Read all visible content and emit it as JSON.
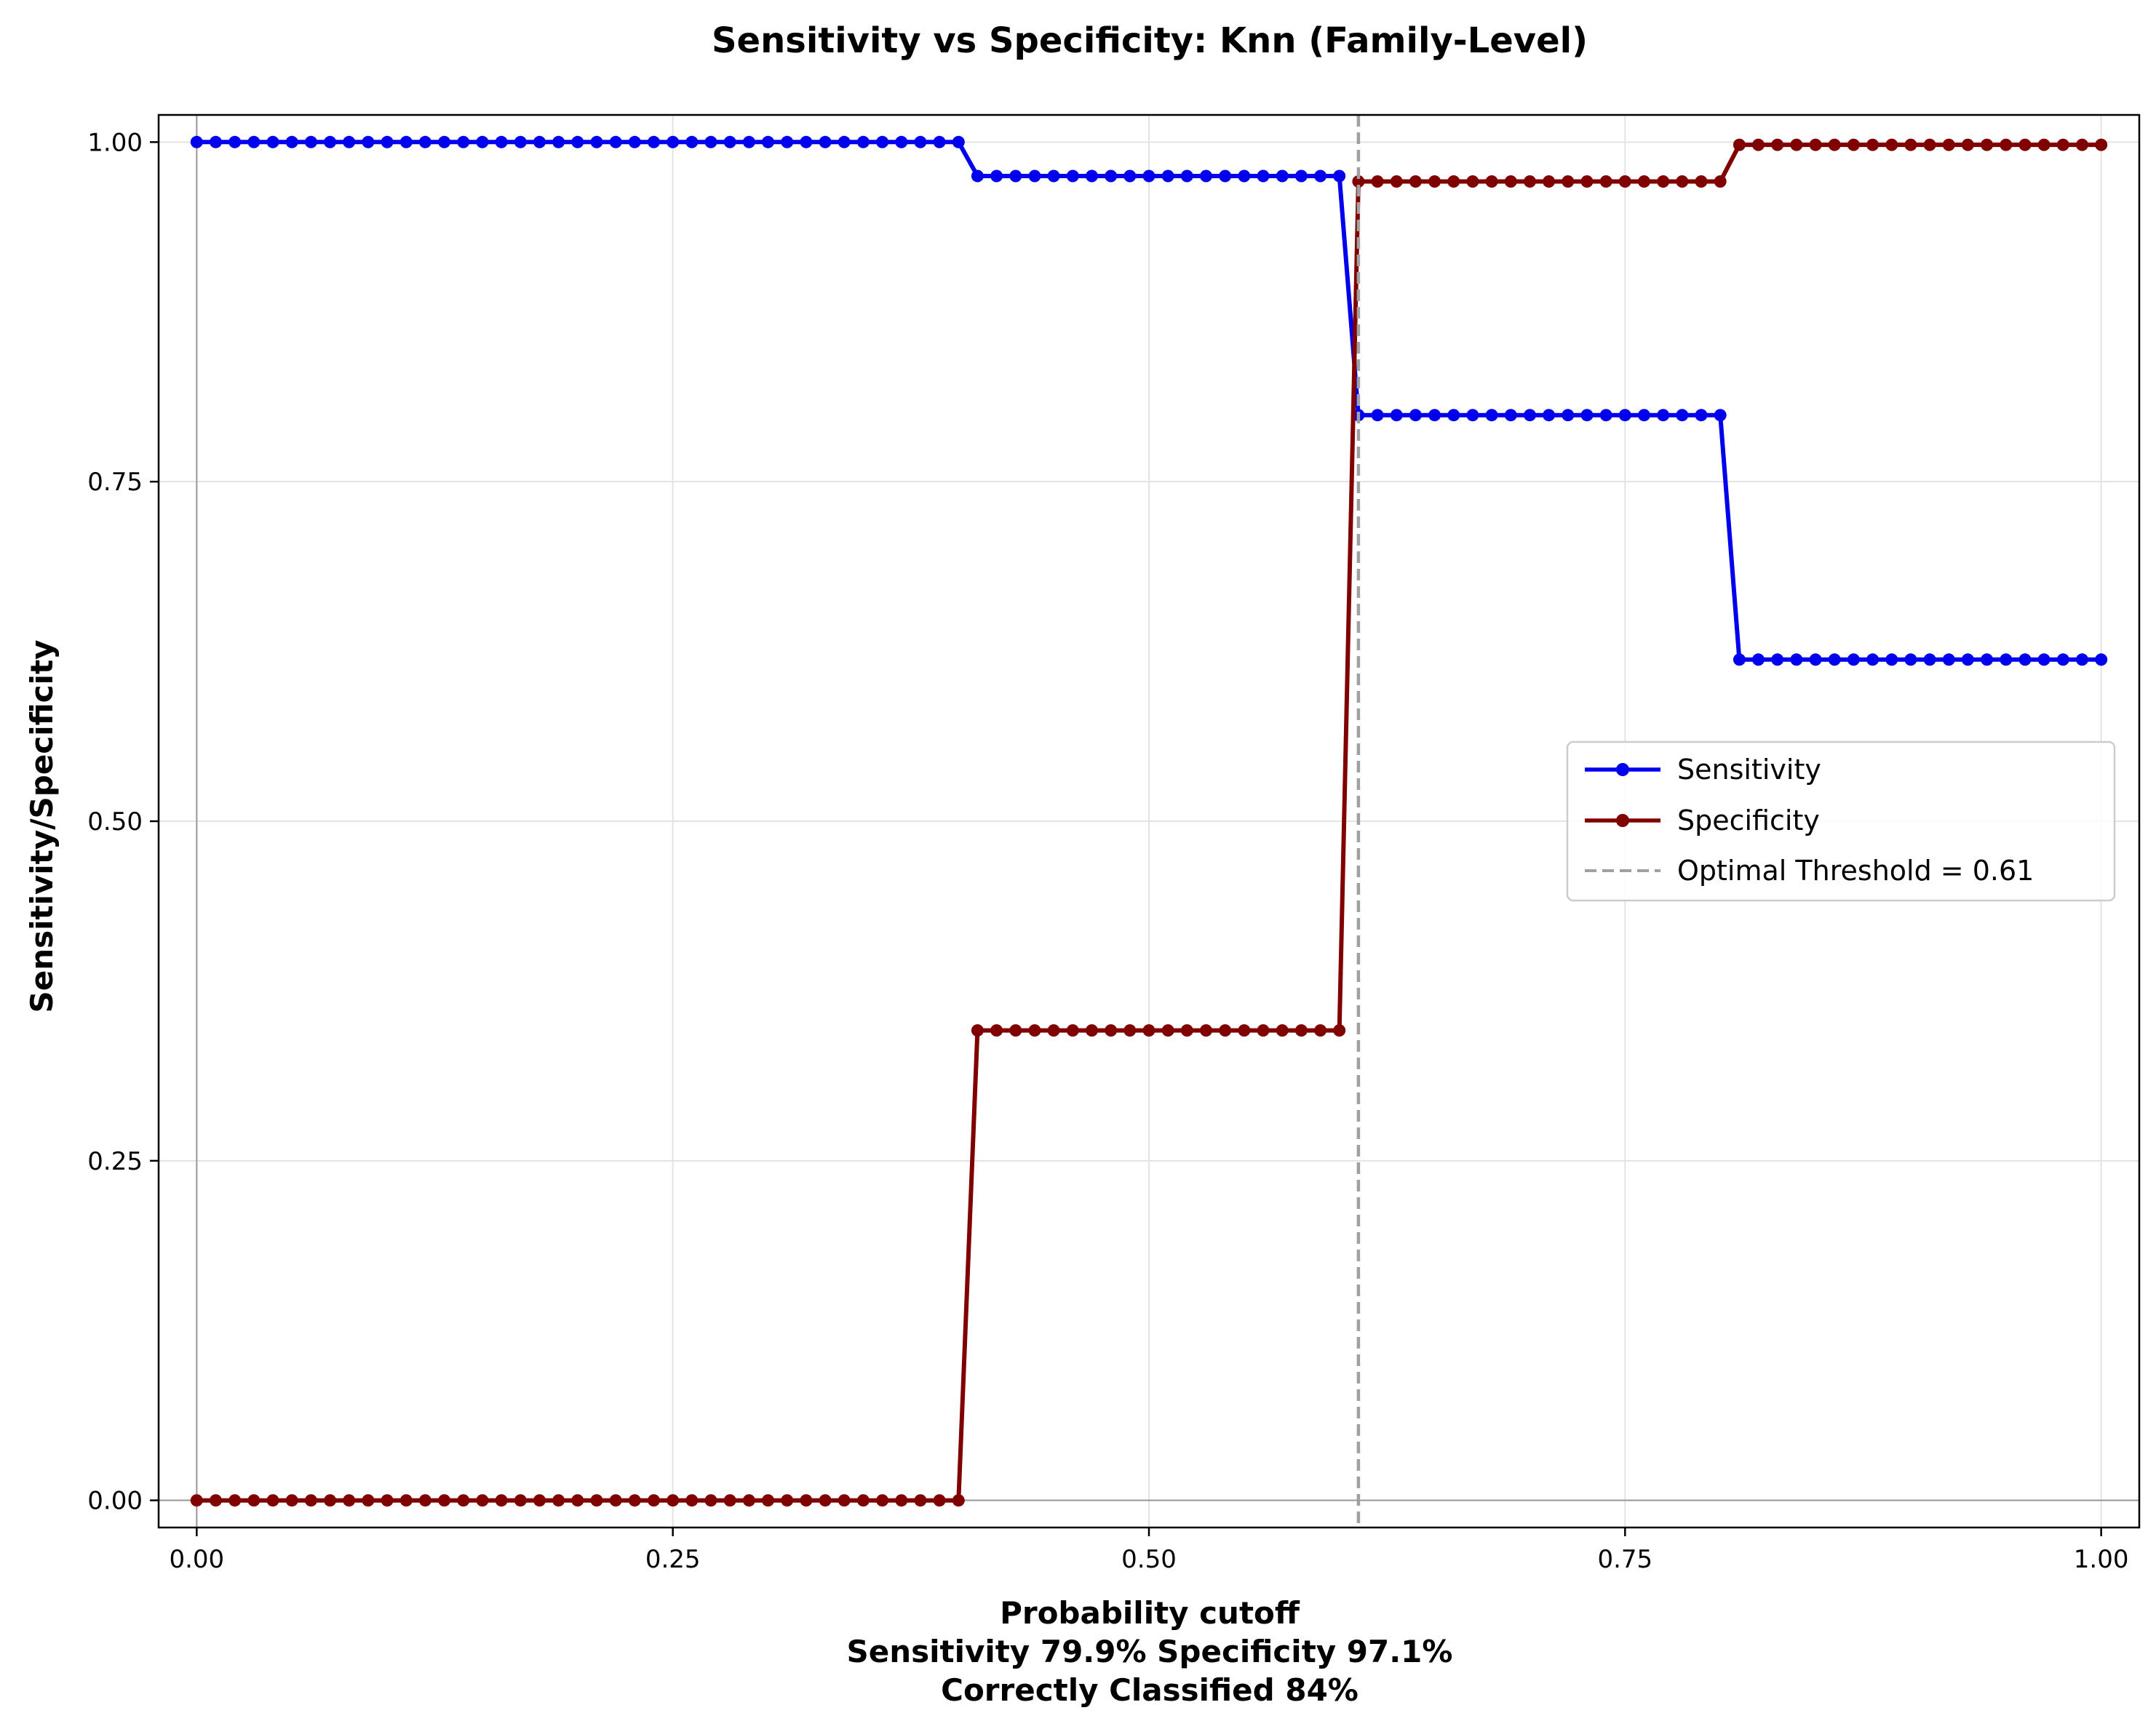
{
  "chart_data": {
    "type": "line",
    "title": "Sensitivity vs Specificity: Knn (Family-Level)",
    "xlabel": "Probability cutoff",
    "xlabel_lines": [
      "Sensitivity 79.9% Specificity 97.1%",
      "Correctly Classified 84%"
    ],
    "ylabel": "Sensitivity/Specificity",
    "xlim": [
      -0.02,
      1.02
    ],
    "ylim": [
      -0.02,
      1.02
    ],
    "xticks": [
      {
        "value": 0.0,
        "label": "0.00"
      },
      {
        "value": 0.25,
        "label": "0.25"
      },
      {
        "value": 0.5,
        "label": "0.50"
      },
      {
        "value": 0.75,
        "label": "0.75"
      },
      {
        "value": 1.0,
        "label": "1.00"
      }
    ],
    "yticks": [
      {
        "value": 0.0,
        "label": "0.00"
      },
      {
        "value": 0.25,
        "label": "0.25"
      },
      {
        "value": 0.5,
        "label": "0.50"
      },
      {
        "value": 0.75,
        "label": "0.75"
      },
      {
        "value": 1.0,
        "label": "1.00"
      }
    ],
    "grid": true,
    "legend_position": "center-right",
    "threshold": {
      "value": 0.61,
      "label": "Optimal Threshold = 0.61",
      "color": "#a0a0a0"
    },
    "x_step": 0.01,
    "series": [
      {
        "name": "Sensitivity",
        "color": "#0000ee",
        "segments": [
          {
            "from": 0.0,
            "to": 0.4,
            "value": 1.0
          },
          {
            "from": 0.41,
            "to": 0.6,
            "value": 0.975
          },
          {
            "from": 0.61,
            "to": 0.8,
            "value": 0.799
          },
          {
            "from": 0.81,
            "to": 1.0,
            "value": 0.619
          }
        ]
      },
      {
        "name": "Specificity",
        "color": "#800000",
        "segments": [
          {
            "from": 0.0,
            "to": 0.4,
            "value": 0.0
          },
          {
            "from": 0.41,
            "to": 0.6,
            "value": 0.346
          },
          {
            "from": 0.61,
            "to": 0.8,
            "value": 0.971
          },
          {
            "from": 0.81,
            "to": 1.0,
            "value": 0.998
          }
        ]
      }
    ]
  }
}
